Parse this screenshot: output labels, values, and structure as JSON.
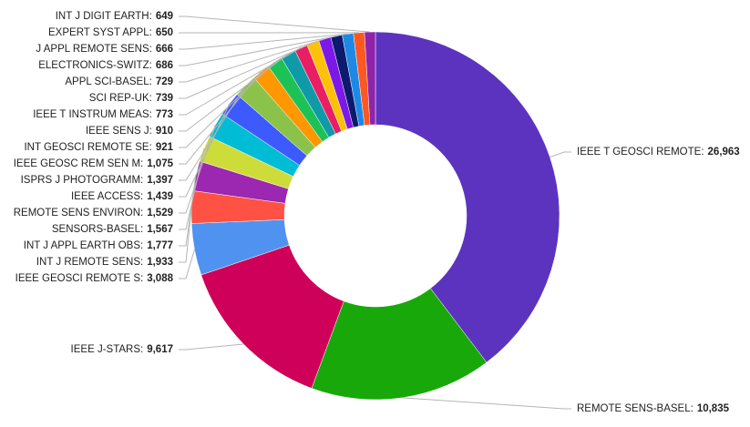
{
  "chart_data": {
    "type": "donut",
    "categories": [
      "IEEE T GEOSCI REMOTE:",
      "REMOTE SENS-BASEL:",
      "IEEE J-STARS:",
      "IEEE GEOSCI REMOTE S:",
      "INT J REMOTE SENS:",
      "INT J APPL EARTH OBS:",
      "SENSORS-BASEL:",
      "REMOTE SENS ENVIRON:",
      "IEEE ACCESS:",
      "ISPRS J PHOTOGRAMM:",
      "IEEE GEOSC REM SEN M:",
      "INT GEOSCI REMOTE SE:",
      "IEEE SENS J:",
      "IEEE T INSTRUM MEAS:",
      "SCI REP-UK:",
      "APPL SCI-BASEL:",
      "ELECTRONICS-SWITZ:",
      "J APPL REMOTE SENS:",
      "EXPERT SYST APPL:",
      "INT J DIGIT EARTH:"
    ],
    "values": [
      26963,
      10835,
      9617,
      3088,
      1933,
      1777,
      1567,
      1529,
      1439,
      1397,
      1075,
      921,
      910,
      773,
      739,
      729,
      686,
      666,
      650,
      649
    ],
    "value_labels": [
      "26,963",
      "10,835",
      "9,617",
      "3,088",
      "1,933",
      "1,777",
      "1,567",
      "1,529",
      "1,439",
      "1,397",
      "1,075",
      "921",
      "910",
      "773",
      "739",
      "729",
      "686",
      "666",
      "650",
      "649"
    ],
    "colors": [
      "#5c33be",
      "#18a80a",
      "#cf0059",
      "#5092f0",
      "#ff5144",
      "#9c27b0",
      "#cddc39",
      "#00bcd4",
      "#3d5afe",
      "#8bc34a",
      "#ff9800",
      "#1dc257",
      "#0f9aa8",
      "#e91e63",
      "#ffc107",
      "#7c18e8",
      "#0d1b6e",
      "#1e88e5",
      "#ff5722",
      "#8e24aa"
    ]
  }
}
